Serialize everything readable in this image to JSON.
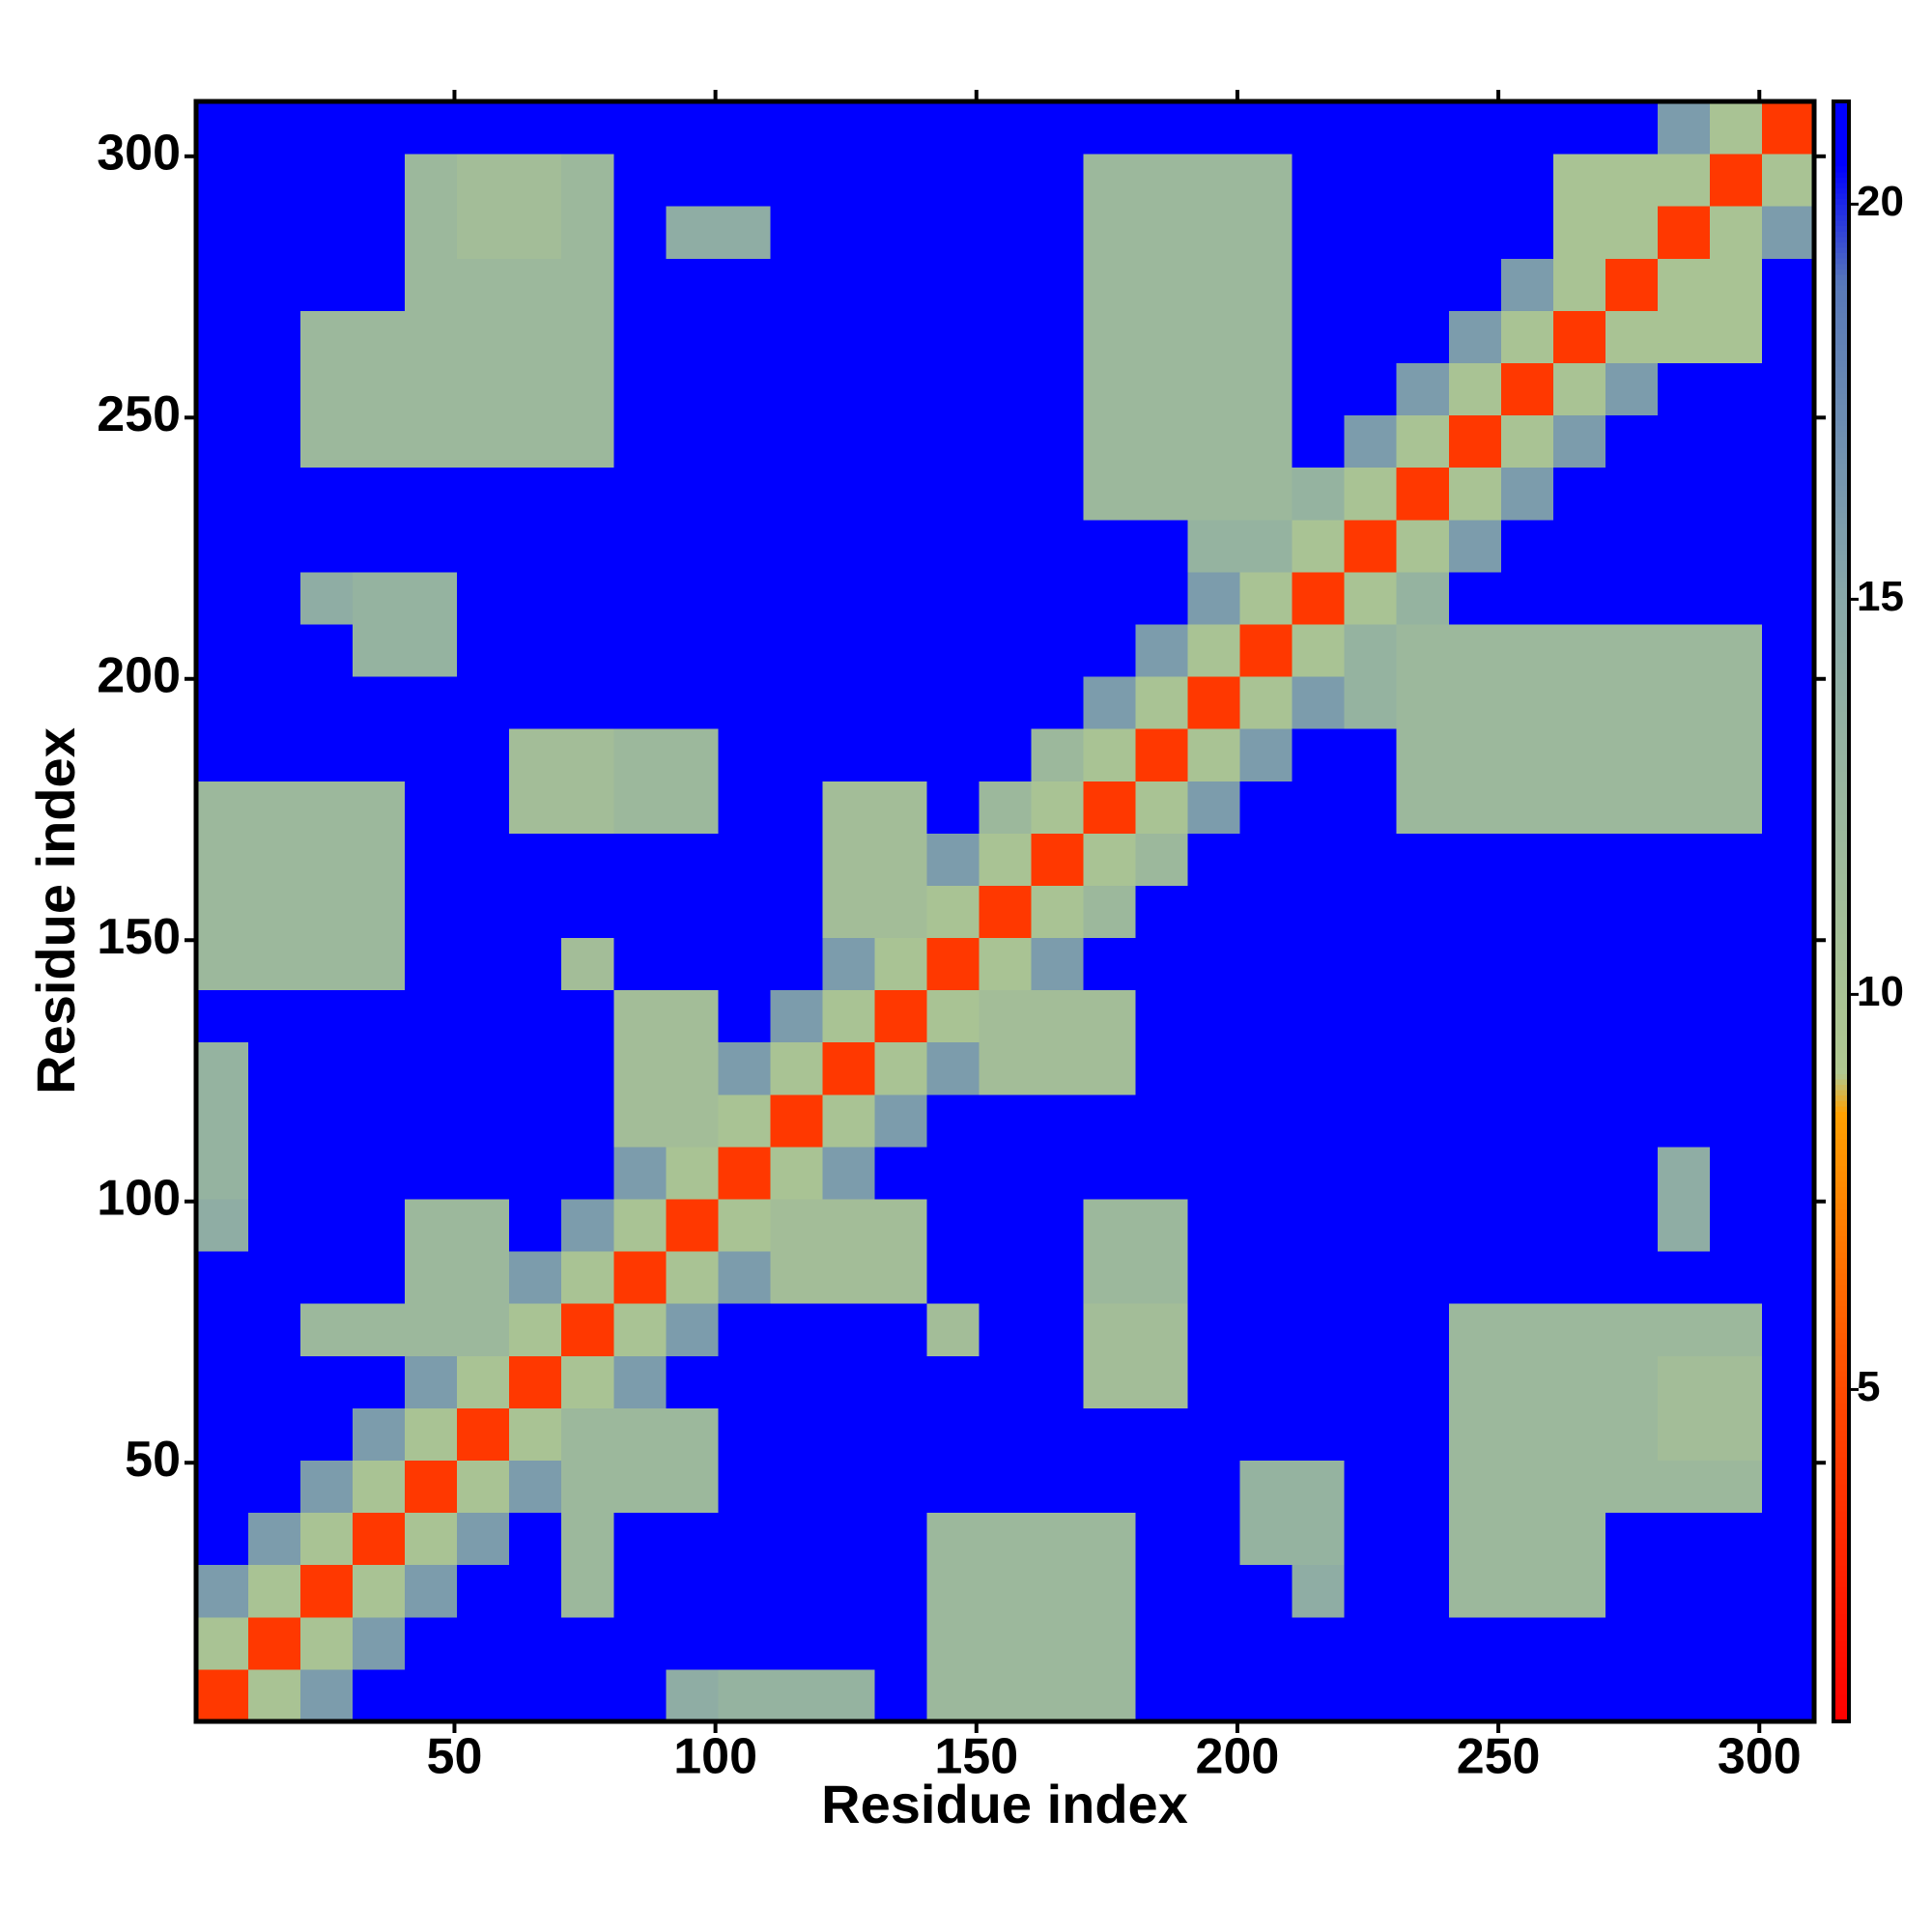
{
  "chart_data": {
    "type": "heatmap",
    "xlabel": "Residue index",
    "ylabel": "Residue index",
    "xbins": [
      0.5,
      10.5,
      20.5,
      30.5,
      40.5,
      50.5,
      60.5,
      70.5,
      80.5,
      90.5,
      100.5,
      110.5,
      120.5,
      130.5,
      140.5,
      150.5,
      160.5,
      170.5,
      180.5,
      190.5,
      200.5,
      210.5,
      220.5,
      230.5,
      240.5,
      250.5,
      260.5,
      270.5,
      280.5,
      290.5,
      300.5,
      310.5
    ],
    "ybins": [
      0.5,
      10.5,
      20.5,
      30.5,
      40.5,
      50.5,
      60.5,
      70.5,
      80.5,
      90.5,
      100.5,
      110.5,
      120.5,
      130.5,
      140.5,
      150.5,
      160.5,
      170.5,
      180.5,
      190.5,
      200.5,
      210.5,
      220.5,
      230.5,
      240.5,
      250.5,
      260.5,
      270.5,
      280.5,
      290.5,
      300.5,
      310.5
    ],
    "z": [
      [
        4,
        10,
        16,
        21,
        21,
        21,
        21,
        21,
        21,
        14,
        13,
        13,
        13,
        21,
        12,
        12,
        12,
        12,
        21,
        21,
        21,
        21,
        21,
        21,
        21,
        21,
        21,
        21,
        21,
        21,
        21
      ],
      [
        10,
        4,
        10,
        16,
        21,
        21,
        21,
        21,
        21,
        21,
        21,
        21,
        21,
        21,
        12,
        12,
        12,
        12,
        21,
        21,
        21,
        21,
        21,
        21,
        21,
        21,
        21,
        21,
        21,
        21,
        21
      ],
      [
        16,
        10,
        4,
        10,
        16,
        21,
        21,
        12,
        21,
        21,
        21,
        21,
        21,
        21,
        12,
        12,
        12,
        12,
        21,
        21,
        21,
        14,
        21,
        21,
        12,
        12,
        12,
        21,
        21,
        21,
        21
      ],
      [
        21,
        16,
        10,
        4,
        10,
        16,
        21,
        12,
        21,
        21,
        21,
        21,
        21,
        21,
        12,
        12,
        12,
        12,
        21,
        21,
        13,
        13,
        21,
        21,
        12,
        12,
        12,
        21,
        21,
        21,
        21
      ],
      [
        21,
        21,
        16,
        10,
        4,
        10,
        16,
        12,
        12,
        12,
        21,
        21,
        21,
        21,
        21,
        21,
        21,
        21,
        21,
        21,
        13,
        13,
        21,
        21,
        12,
        12,
        12,
        12,
        12,
        12,
        21
      ],
      [
        21,
        21,
        21,
        16,
        10,
        4,
        10,
        12,
        12,
        12,
        21,
        21,
        21,
        21,
        21,
        21,
        21,
        21,
        21,
        21,
        21,
        21,
        21,
        21,
        12,
        12,
        12,
        12,
        11,
        11,
        21
      ],
      [
        21,
        21,
        21,
        21,
        16,
        10,
        4,
        10,
        16,
        21,
        21,
        21,
        21,
        21,
        21,
        21,
        21,
        11,
        11,
        21,
        21,
        21,
        21,
        21,
        12,
        12,
        12,
        12,
        11,
        11,
        21
      ],
      [
        21,
        21,
        12,
        12,
        12,
        12,
        10,
        4,
        10,
        16,
        21,
        21,
        21,
        21,
        11,
        21,
        21,
        11,
        11,
        21,
        21,
        21,
        21,
        21,
        12,
        12,
        12,
        12,
        12,
        12,
        21
      ],
      [
        21,
        21,
        21,
        21,
        12,
        12,
        16,
        10,
        4,
        10,
        16,
        11,
        11,
        11,
        21,
        21,
        21,
        12,
        12,
        21,
        21,
        21,
        21,
        21,
        21,
        21,
        21,
        21,
        21,
        21,
        21
      ],
      [
        14,
        21,
        21,
        21,
        12,
        12,
        21,
        16,
        10,
        4,
        10,
        11,
        11,
        11,
        21,
        21,
        21,
        12,
        12,
        21,
        21,
        21,
        21,
        21,
        21,
        21,
        21,
        21,
        14,
        21,
        21
      ],
      [
        13,
        21,
        21,
        21,
        21,
        21,
        21,
        21,
        16,
        10,
        4,
        10,
        16,
        21,
        21,
        21,
        21,
        21,
        21,
        21,
        21,
        21,
        21,
        21,
        21,
        21,
        21,
        21,
        14,
        21,
        21
      ],
      [
        13,
        21,
        21,
        21,
        21,
        21,
        21,
        21,
        11,
        11,
        10,
        4,
        10,
        16,
        21,
        21,
        21,
        21,
        21,
        21,
        21,
        21,
        21,
        21,
        21,
        21,
        21,
        21,
        21,
        21,
        21
      ],
      [
        13,
        21,
        21,
        21,
        21,
        21,
        21,
        21,
        11,
        11,
        16,
        10,
        4,
        10,
        16,
        11,
        11,
        11,
        21,
        21,
        21,
        21,
        21,
        21,
        21,
        21,
        21,
        21,
        21,
        21,
        21
      ],
      [
        21,
        21,
        21,
        21,
        21,
        21,
        21,
        21,
        11,
        11,
        21,
        16,
        10,
        4,
        10,
        11,
        11,
        11,
        21,
        21,
        21,
        21,
        21,
        21,
        21,
        21,
        21,
        21,
        21,
        21,
        21
      ],
      [
        12,
        12,
        12,
        12,
        21,
        21,
        21,
        11,
        21,
        21,
        21,
        21,
        16,
        10,
        4,
        10,
        16,
        21,
        21,
        21,
        21,
        21,
        21,
        21,
        21,
        21,
        21,
        21,
        21,
        21,
        21
      ],
      [
        12,
        12,
        12,
        12,
        21,
        21,
        21,
        21,
        21,
        21,
        21,
        21,
        11,
        11,
        10,
        4,
        10,
        12,
        21,
        21,
        21,
        21,
        21,
        21,
        21,
        21,
        21,
        21,
        21,
        21,
        21
      ],
      [
        12,
        12,
        12,
        12,
        21,
        21,
        21,
        21,
        21,
        21,
        21,
        21,
        11,
        11,
        16,
        10,
        4,
        10,
        12,
        21,
        21,
        21,
        21,
        21,
        21,
        21,
        21,
        21,
        21,
        21,
        21
      ],
      [
        12,
        12,
        12,
        12,
        21,
        21,
        11,
        11,
        12,
        12,
        21,
        21,
        11,
        11,
        21,
        12,
        10,
        4,
        10,
        16,
        21,
        21,
        21,
        12,
        12,
        12,
        12,
        12,
        12,
        12,
        21
      ],
      [
        21,
        21,
        21,
        21,
        21,
        21,
        11,
        11,
        12,
        12,
        21,
        21,
        21,
        21,
        21,
        21,
        12,
        10,
        4,
        10,
        16,
        21,
        21,
        12,
        12,
        12,
        12,
        12,
        12,
        12,
        21
      ],
      [
        21,
        21,
        21,
        21,
        21,
        21,
        21,
        21,
        21,
        21,
        21,
        21,
        21,
        21,
        21,
        21,
        21,
        16,
        10,
        4,
        10,
        16,
        13,
        12,
        12,
        12,
        12,
        12,
        12,
        12,
        21
      ],
      [
        21,
        21,
        21,
        13,
        13,
        21,
        21,
        21,
        21,
        21,
        21,
        21,
        21,
        21,
        21,
        21,
        21,
        21,
        16,
        10,
        4,
        10,
        13,
        12,
        12,
        12,
        12,
        12,
        12,
        12,
        21
      ],
      [
        21,
        21,
        14,
        13,
        13,
        21,
        21,
        21,
        21,
        21,
        21,
        21,
        21,
        21,
        21,
        21,
        21,
        21,
        21,
        16,
        10,
        4,
        10,
        13,
        21,
        21,
        21,
        21,
        21,
        21,
        21
      ],
      [
        21,
        21,
        21,
        21,
        21,
        21,
        21,
        21,
        21,
        21,
        21,
        21,
        21,
        21,
        21,
        21,
        21,
        21,
        21,
        13,
        13,
        10,
        4,
        10,
        16,
        21,
        21,
        21,
        21,
        21,
        21
      ],
      [
        21,
        21,
        21,
        21,
        21,
        21,
        21,
        21,
        21,
        21,
        21,
        21,
        21,
        21,
        21,
        21,
        21,
        12,
        12,
        12,
        12,
        13,
        10,
        4,
        10,
        16,
        21,
        21,
        21,
        21,
        21
      ],
      [
        21,
        21,
        12,
        12,
        12,
        12,
        12,
        12,
        21,
        21,
        21,
        21,
        21,
        21,
        21,
        21,
        21,
        12,
        12,
        12,
        12,
        21,
        16,
        10,
        4,
        10,
        16,
        21,
        21,
        21,
        21
      ],
      [
        21,
        21,
        12,
        12,
        12,
        12,
        12,
        12,
        21,
        21,
        21,
        21,
        21,
        21,
        21,
        21,
        21,
        12,
        12,
        12,
        12,
        21,
        21,
        16,
        10,
        4,
        10,
        16,
        21,
        21,
        21
      ],
      [
        21,
        21,
        12,
        12,
        12,
        12,
        12,
        12,
        21,
        21,
        21,
        21,
        21,
        21,
        21,
        21,
        21,
        12,
        12,
        12,
        12,
        21,
        21,
        21,
        16,
        10,
        4,
        10,
        10,
        10,
        21
      ],
      [
        21,
        21,
        21,
        21,
        12,
        12,
        12,
        12,
        21,
        21,
        21,
        21,
        21,
        21,
        21,
        21,
        21,
        12,
        12,
        12,
        12,
        21,
        21,
        21,
        21,
        16,
        10,
        4,
        10,
        10,
        21
      ],
      [
        21,
        21,
        21,
        21,
        12,
        11,
        11,
        12,
        21,
        14,
        14,
        21,
        21,
        21,
        21,
        21,
        21,
        12,
        12,
        12,
        12,
        21,
        21,
        21,
        21,
        21,
        10,
        10,
        4,
        10,
        16
      ],
      [
        21,
        21,
        21,
        21,
        12,
        11,
        11,
        12,
        21,
        21,
        21,
        21,
        21,
        21,
        21,
        21,
        21,
        12,
        12,
        12,
        12,
        21,
        21,
        21,
        21,
        21,
        10,
        10,
        10,
        4,
        10
      ],
      [
        21,
        21,
        21,
        21,
        21,
        21,
        21,
        21,
        21,
        21,
        21,
        21,
        21,
        21,
        21,
        21,
        21,
        21,
        21,
        21,
        21,
        21,
        21,
        21,
        21,
        21,
        21,
        21,
        16,
        10,
        4
      ]
    ],
    "xlim": [
      0.5,
      310.5
    ],
    "ylim": [
      0.5,
      310.5
    ],
    "xticks": [
      50,
      100,
      150,
      200,
      250,
      300
    ],
    "yticks": [
      50,
      100,
      150,
      200,
      250,
      300
    ],
    "zlim": [
      0.8,
      21.3
    ],
    "zticks": [
      5,
      10,
      15,
      20
    ],
    "colorscale": [
      [
        0.8,
        "#ff0000"
      ],
      [
        5,
        "#ff4a00"
      ],
      [
        8.5,
        "#ffa000"
      ],
      [
        9,
        "#b0c890"
      ],
      [
        15,
        "#88a8a8"
      ],
      [
        19,
        "#5878b8"
      ],
      [
        20.5,
        "#0000ff"
      ]
    ]
  }
}
